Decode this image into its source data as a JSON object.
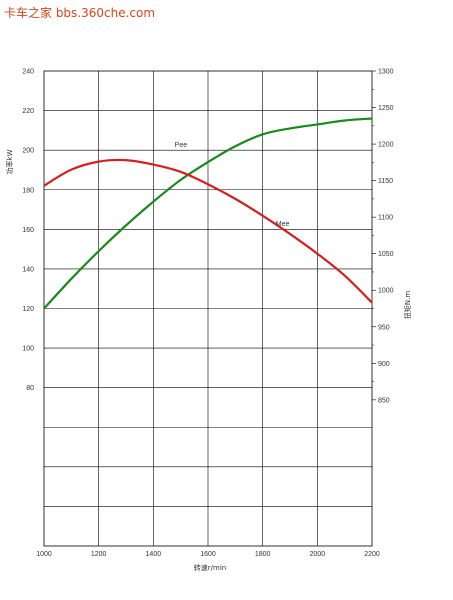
{
  "watermark": "卡车之家 bbs.360che.com",
  "chart_data": {
    "type": "line",
    "title": "",
    "xlabel": "转速r/min",
    "ylabel_left": "功率kW",
    "ylabel_right": "扭矩N.m",
    "xlim": [
      1000,
      2200
    ],
    "x_ticks": [
      1000,
      1200,
      1400,
      1600,
      1800,
      2000,
      2200
    ],
    "x_tick_labels": [
      "1000",
      "1200",
      "1400",
      "1600",
      "1800",
      "2000",
      "2200"
    ],
    "ylim_left": [
      0,
      240
    ],
    "y_left_ticks": [
      80,
      100,
      120,
      140,
      160,
      180,
      200,
      220,
      240
    ],
    "y_left_tick_labels": [
      "80",
      "100",
      "120",
      "140",
      "160",
      "180",
      "200",
      "220",
      "240"
    ],
    "ylim_right": [
      650,
      1300
    ],
    "y_right_ticks": [
      850,
      900,
      950,
      1000,
      1050,
      1100,
      1150,
      1200,
      1250,
      1300
    ],
    "y_right_tick_labels": [
      "850",
      "900",
      "950",
      "1000",
      "1050",
      "1100",
      "1150",
      "1200",
      "1250",
      "1300"
    ],
    "grid": true,
    "series": [
      {
        "name": "Pee",
        "axis": "left",
        "color": "#1a8a1a",
        "x": [
          1000,
          1100,
          1200,
          1300,
          1400,
          1500,
          1600,
          1700,
          1800,
          1900,
          2000,
          2100,
          2200
        ],
        "values": [
          120,
          135,
          149,
          162,
          174,
          185,
          194,
          202,
          208,
          211,
          213,
          215,
          216
        ]
      },
      {
        "name": "Mee",
        "axis": "right",
        "color": "#d42020",
        "x": [
          1000,
          1100,
          1200,
          1300,
          1400,
          1500,
          1600,
          1700,
          1800,
          1900,
          2000,
          2100,
          2200
        ],
        "values": [
          1143,
          1165,
          1176,
          1178,
          1172,
          1162,
          1145,
          1125,
          1102,
          1077,
          1050,
          1020,
          983
        ]
      }
    ]
  }
}
